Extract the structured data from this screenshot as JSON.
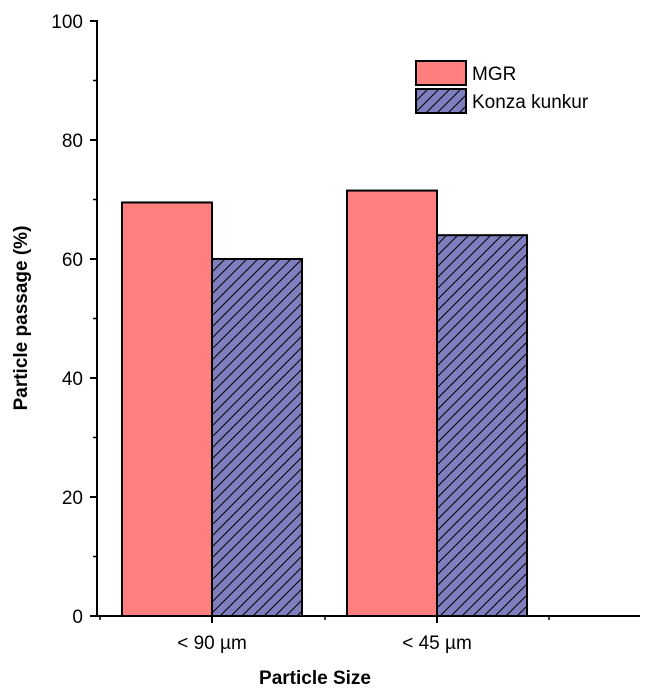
{
  "chart_data": {
    "type": "bar",
    "categories": [
      "< 90 µm",
      "< 45 µm"
    ],
    "series": [
      {
        "name": "MGR",
        "values": [
          69.5,
          71.5
        ],
        "color": "#FF7F7F",
        "pattern": "solid"
      },
      {
        "name": "Konza kunkur",
        "values": [
          60,
          64
        ],
        "color": "#7F7FBF",
        "pattern": "diagonal-hatch"
      }
    ],
    "title": "",
    "xlabel": "Particle Size",
    "ylabel": "Particle passage (%)",
    "ylim": [
      0,
      100
    ],
    "yticks": [
      0,
      20,
      40,
      60,
      80,
      100
    ],
    "yticks_labels": [
      "0",
      "20",
      "40",
      "60",
      "80",
      "100"
    ],
    "grid": false,
    "legend_position": "top-right"
  }
}
